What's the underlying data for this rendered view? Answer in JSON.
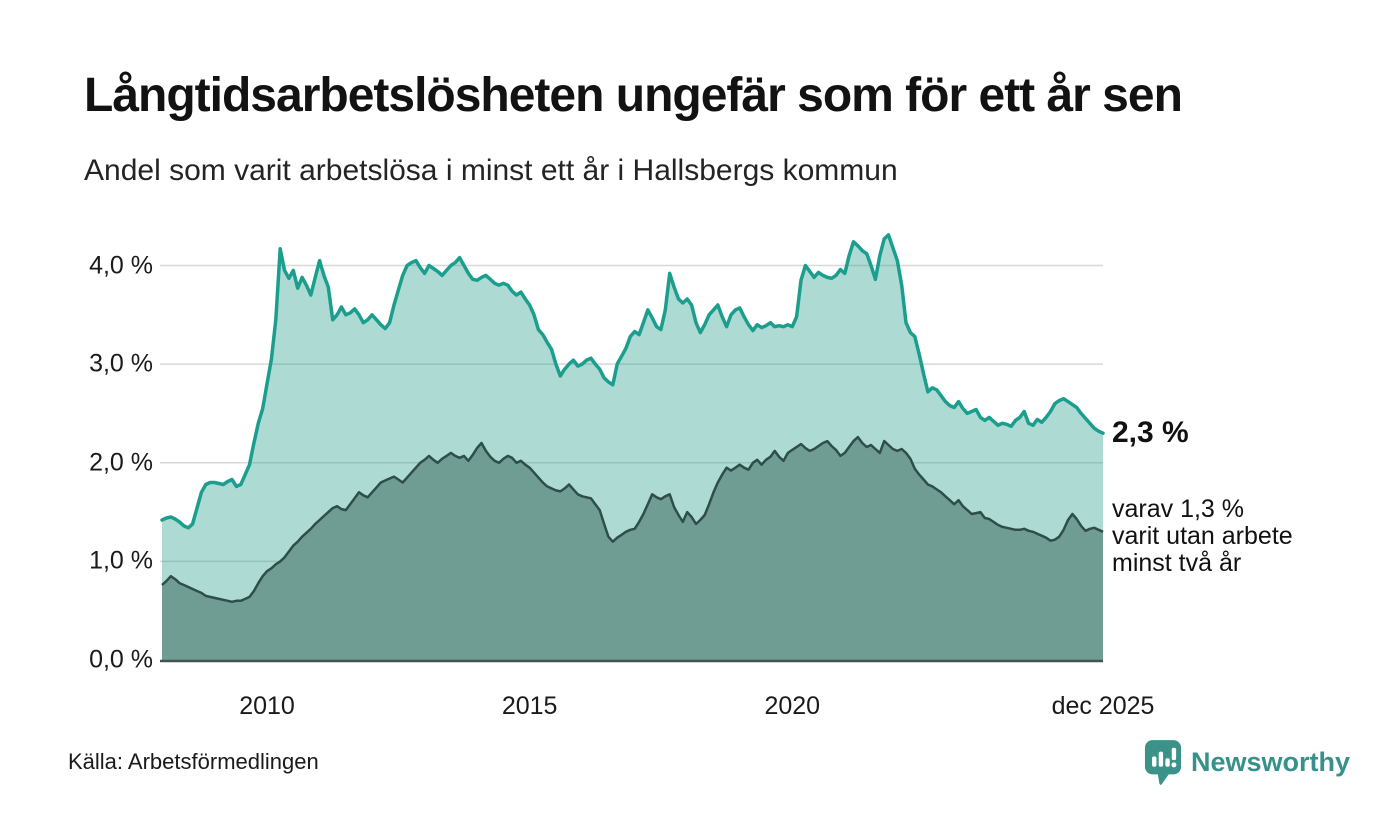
{
  "header": {
    "title": "Långtidsarbetslösheten ungefär som för ett år sen",
    "subtitle": "Andel som varit arbetslösa i minst ett år i Hallsbergs kommun"
  },
  "chart_data": {
    "type": "area",
    "title": "Långtidsarbetslösheten ungefär som för ett år sen",
    "subtitle": "Andel som varit arbetslösa i minst ett år i Hallsbergs kommun",
    "unit": "%",
    "x_start_year": 2008,
    "x_step_months": 1,
    "xlim": [
      2008.0,
      2025.9167
    ],
    "ylim": [
      0,
      4.35
    ],
    "grid": true,
    "gridline_color": "#d8d8d8",
    "axis_line_color": "#47524f",
    "y_ticks": [
      {
        "value": 0,
        "label": "0,0 %"
      },
      {
        "value": 1,
        "label": "1,0 %"
      },
      {
        "value": 2,
        "label": "2,0 %"
      },
      {
        "value": 3,
        "label": "3,0 %"
      },
      {
        "value": 4,
        "label": "4,0 %"
      }
    ],
    "x_ticks": [
      {
        "value": 2010,
        "label": "2010"
      },
      {
        "value": 2015,
        "label": "2015"
      },
      {
        "value": 2020,
        "label": "2020"
      },
      {
        "value": 2025.9167,
        "label": "dec 2025"
      }
    ],
    "series": [
      {
        "name": "Andel som varit arbetslösa minst ett år",
        "line_color": "#1b9e8e",
        "line_width": 3.5,
        "fill_color": "rgba(42,157,143,0.38)",
        "last_value": 2.3,
        "values": [
          1.42,
          1.44,
          1.45,
          1.43,
          1.4,
          1.36,
          1.34,
          1.38,
          1.54,
          1.7,
          1.78,
          1.8,
          1.8,
          1.79,
          1.78,
          1.81,
          1.83,
          1.76,
          1.78,
          1.88,
          1.98,
          2.2,
          2.4,
          2.55,
          2.8,
          3.05,
          3.45,
          4.17,
          3.95,
          3.87,
          3.95,
          3.77,
          3.88,
          3.8,
          3.7,
          3.88,
          4.05,
          3.9,
          3.78,
          3.45,
          3.5,
          3.58,
          3.5,
          3.52,
          3.56,
          3.5,
          3.42,
          3.45,
          3.5,
          3.45,
          3.4,
          3.36,
          3.42,
          3.6,
          3.75,
          3.9,
          4.0,
          4.03,
          4.05,
          3.98,
          3.92,
          4.0,
          3.97,
          3.94,
          3.9,
          3.95,
          4.0,
          4.03,
          4.08,
          4.0,
          3.92,
          3.86,
          3.85,
          3.88,
          3.9,
          3.86,
          3.82,
          3.8,
          3.82,
          3.8,
          3.74,
          3.7,
          3.73,
          3.66,
          3.6,
          3.5,
          3.35,
          3.3,
          3.22,
          3.15,
          3.0,
          2.88,
          2.95,
          3.0,
          3.04,
          2.98,
          3.0,
          3.04,
          3.06,
          3.0,
          2.95,
          2.86,
          2.82,
          2.79,
          3.0,
          3.08,
          3.16,
          3.28,
          3.33,
          3.3,
          3.42,
          3.55,
          3.47,
          3.38,
          3.35,
          3.55,
          3.92,
          3.78,
          3.66,
          3.62,
          3.66,
          3.6,
          3.42,
          3.32,
          3.4,
          3.5,
          3.55,
          3.6,
          3.48,
          3.38,
          3.5,
          3.55,
          3.57,
          3.48,
          3.4,
          3.34,
          3.4,
          3.37,
          3.39,
          3.42,
          3.38,
          3.39,
          3.38,
          3.4,
          3.38,
          3.48,
          3.85,
          4.0,
          3.94,
          3.88,
          3.93,
          3.9,
          3.88,
          3.87,
          3.9,
          3.96,
          3.92,
          4.1,
          4.24,
          4.2,
          4.15,
          4.12,
          4.0,
          3.86,
          4.1,
          4.27,
          4.31,
          4.18,
          4.05,
          3.8,
          3.42,
          3.32,
          3.28,
          3.1,
          2.9,
          2.72,
          2.76,
          2.74,
          2.68,
          2.62,
          2.58,
          2.56,
          2.62,
          2.55,
          2.5,
          2.52,
          2.54,
          2.46,
          2.43,
          2.46,
          2.42,
          2.38,
          2.4,
          2.39,
          2.37,
          2.43,
          2.46,
          2.52,
          2.4,
          2.38,
          2.44,
          2.41,
          2.46,
          2.52,
          2.6,
          2.63,
          2.65,
          2.62,
          2.59,
          2.56,
          2.5,
          2.45,
          2.4,
          2.35,
          2.32,
          2.3
        ]
      },
      {
        "name": "Andel som varit utan arbete minst två år",
        "line_color": "#2e4f49",
        "line_width": 2.5,
        "fill_color": "#6f9d94",
        "last_value": 1.3,
        "values": [
          0.76,
          0.8,
          0.85,
          0.82,
          0.78,
          0.76,
          0.74,
          0.72,
          0.7,
          0.68,
          0.65,
          0.64,
          0.63,
          0.62,
          0.61,
          0.6,
          0.59,
          0.6,
          0.6,
          0.62,
          0.64,
          0.7,
          0.78,
          0.85,
          0.9,
          0.93,
          0.97,
          1.0,
          1.04,
          1.1,
          1.16,
          1.2,
          1.25,
          1.29,
          1.33,
          1.38,
          1.42,
          1.46,
          1.5,
          1.54,
          1.56,
          1.53,
          1.52,
          1.58,
          1.64,
          1.7,
          1.67,
          1.65,
          1.7,
          1.75,
          1.8,
          1.82,
          1.84,
          1.86,
          1.83,
          1.8,
          1.85,
          1.9,
          1.95,
          2.0,
          2.03,
          2.07,
          2.03,
          2.0,
          2.04,
          2.07,
          2.1,
          2.07,
          2.05,
          2.07,
          2.02,
          2.08,
          2.15,
          2.2,
          2.12,
          2.06,
          2.02,
          2.0,
          2.04,
          2.07,
          2.05,
          2.0,
          2.02,
          1.98,
          1.95,
          1.9,
          1.85,
          1.8,
          1.76,
          1.74,
          1.72,
          1.71,
          1.74,
          1.78,
          1.73,
          1.68,
          1.66,
          1.65,
          1.64,
          1.58,
          1.52,
          1.38,
          1.25,
          1.2,
          1.24,
          1.27,
          1.3,
          1.32,
          1.33,
          1.4,
          1.48,
          1.58,
          1.68,
          1.65,
          1.63,
          1.66,
          1.68,
          1.55,
          1.47,
          1.4,
          1.5,
          1.45,
          1.38,
          1.42,
          1.47,
          1.58,
          1.7,
          1.8,
          1.88,
          1.95,
          1.92,
          1.95,
          1.98,
          1.95,
          1.93,
          2.0,
          2.03,
          1.98,
          2.03,
          2.06,
          2.12,
          2.06,
          2.02,
          2.1,
          2.13,
          2.16,
          2.19,
          2.15,
          2.12,
          2.14,
          2.17,
          2.2,
          2.22,
          2.17,
          2.13,
          2.07,
          2.1,
          2.16,
          2.22,
          2.26,
          2.2,
          2.16,
          2.18,
          2.14,
          2.1,
          2.22,
          2.18,
          2.14,
          2.12,
          2.14,
          2.1,
          2.04,
          1.94,
          1.88,
          1.83,
          1.78,
          1.76,
          1.73,
          1.7,
          1.66,
          1.62,
          1.58,
          1.62,
          1.56,
          1.52,
          1.48,
          1.49,
          1.5,
          1.44,
          1.43,
          1.4,
          1.37,
          1.35,
          1.34,
          1.33,
          1.32,
          1.32,
          1.33,
          1.31,
          1.3,
          1.28,
          1.26,
          1.24,
          1.21,
          1.22,
          1.25,
          1.32,
          1.42,
          1.48,
          1.43,
          1.36,
          1.31,
          1.33,
          1.34,
          1.32,
          1.3
        ]
      }
    ]
  },
  "annotations": {
    "latest_total": "2,3 %",
    "secondary_line1": "varav 1,3 %",
    "secondary_line2": "varit utan arbete",
    "secondary_line3": "minst två år"
  },
  "footer": {
    "source": "Källa: Arbetsförmedlingen",
    "brand": "Newsworthy",
    "brand_color": "#37918a"
  }
}
